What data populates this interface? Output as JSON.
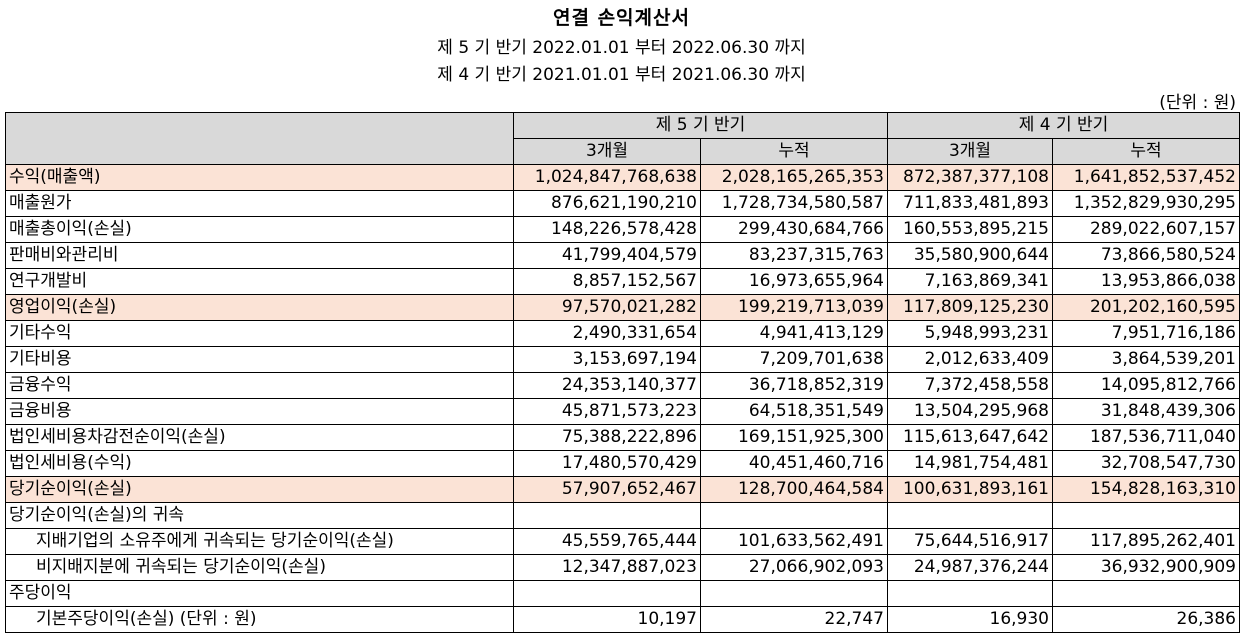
{
  "doc": {
    "title": "연결 손익계산서",
    "period1": "제 5 기 반기 2022.01.01 부터 2022.06.30 까지",
    "period2": "제 4 기 반기 2021.01.01 부터 2021.06.30 까지",
    "unit": "(단위 : 원)"
  },
  "header": {
    "group1": "제 5 기 반기",
    "group2": "제 4 기 반기",
    "c1": "3개월",
    "c2": "누적",
    "c3": "3개월",
    "c4": "누적"
  },
  "rows": [
    {
      "label": "수익(매출액)",
      "v": [
        "1,024,847,768,638",
        "2,028,165,265,353",
        "872,387,377,108",
        "1,641,852,537,452"
      ]
    },
    {
      "label": "매출원가",
      "v": [
        "876,621,190,210",
        "1,728,734,580,587",
        "711,833,481,893",
        "1,352,829,930,295"
      ]
    },
    {
      "label": "매출총이익(손실)",
      "v": [
        "148,226,578,428",
        "299,430,684,766",
        "160,553,895,215",
        "289,022,607,157"
      ]
    },
    {
      "label": "판매비와관리비",
      "v": [
        "41,799,404,579",
        "83,237,315,763",
        "35,580,900,644",
        "73,866,580,524"
      ]
    },
    {
      "label": "연구개발비",
      "v": [
        "8,857,152,567",
        "16,973,655,964",
        "7,163,869,341",
        "13,953,866,038"
      ]
    },
    {
      "label": "영업이익(손실)",
      "v": [
        "97,570,021,282",
        "199,219,713,039",
        "117,809,125,230",
        "201,202,160,595"
      ]
    },
    {
      "label": "기타수익",
      "v": [
        "2,490,331,654",
        "4,941,413,129",
        "5,948,993,231",
        "7,951,716,186"
      ]
    },
    {
      "label": "기타비용",
      "v": [
        "3,153,697,194",
        "7,209,701,638",
        "2,012,633,409",
        "3,864,539,201"
      ]
    },
    {
      "label": "금융수익",
      "v": [
        "24,353,140,377",
        "36,718,852,319",
        "7,372,458,558",
        "14,095,812,766"
      ]
    },
    {
      "label": "금융비용",
      "v": [
        "45,871,573,223",
        "64,518,351,549",
        "13,504,295,968",
        "31,848,439,306"
      ]
    },
    {
      "label": "법인세비용차감전순이익(손실)",
      "v": [
        "75,388,222,896",
        "169,151,925,300",
        "115,613,647,642",
        "187,536,711,040"
      ]
    },
    {
      "label": "법인세비용(수익)",
      "v": [
        "17,480,570,429",
        "40,451,460,716",
        "14,981,754,481",
        "32,708,547,730"
      ]
    },
    {
      "label": "당기순이익(손실)",
      "v": [
        "57,907,652,467",
        "128,700,464,584",
        "100,631,893,161",
        "154,828,163,310"
      ]
    },
    {
      "label": "당기순이익(손실)의 귀속",
      "v": [
        "",
        "",
        "",
        ""
      ]
    },
    {
      "label": "지배기업의 소유주에게 귀속되는 당기순이익(손실)",
      "v": [
        "45,559,765,444",
        "101,633,562,491",
        "75,644,516,917",
        "117,895,262,401"
      ]
    },
    {
      "label": "비지배지분에 귀속되는 당기순이익(손실)",
      "v": [
        "12,347,887,023",
        "27,066,902,093",
        "24,987,376,244",
        "36,932,900,909"
      ]
    },
    {
      "label": "주당이익",
      "v": [
        "",
        "",
        "",
        ""
      ]
    },
    {
      "label": "기본주당이익(손실) (단위 : 원)",
      "v": [
        "10,197",
        "22,747",
        "16,930",
        "26,386"
      ]
    }
  ]
}
